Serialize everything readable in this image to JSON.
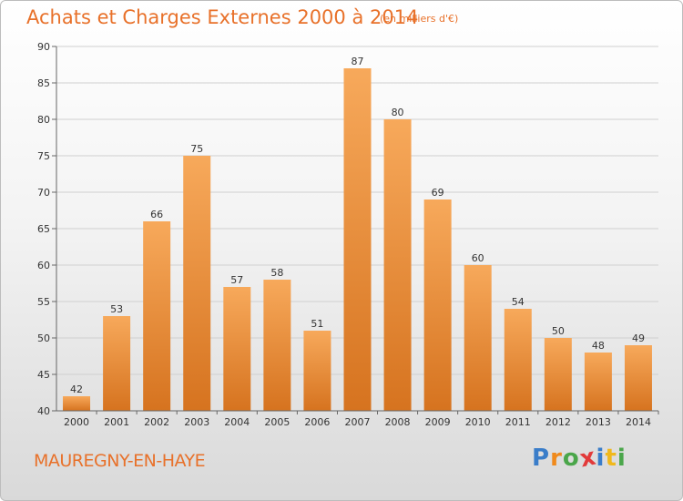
{
  "title": "Achats et Charges Externes 2000 à 2014",
  "unit_note": "(en milliers d'€)",
  "place_name": "MAUREGNY-EN-HAYE",
  "brand": {
    "text": "Proxiti",
    "letter_colors": [
      "#3a7dc9",
      "#f08a1c",
      "#4aa64a",
      "#e23a3a",
      "#3a7dc9",
      "#f0b81c",
      "#4aa64a"
    ]
  },
  "colors": {
    "accent": "#e8712a",
    "bar_top": "#f7a95b",
    "bar_bottom": "#d6731f",
    "grid": "#d0d0d0",
    "axis": "#666666"
  },
  "chart_data": {
    "type": "bar",
    "categories": [
      "2000",
      "2001",
      "2002",
      "2003",
      "2004",
      "2005",
      "2006",
      "2007",
      "2008",
      "2009",
      "2010",
      "2011",
      "2012",
      "2013",
      "2014"
    ],
    "values": [
      42,
      53,
      66,
      75,
      57,
      58,
      51,
      87,
      80,
      69,
      60,
      54,
      50,
      48,
      49
    ],
    "ylim": [
      40,
      90
    ],
    "yticks": [
      40,
      45,
      50,
      55,
      60,
      65,
      70,
      75,
      80,
      85,
      90
    ],
    "grid": true,
    "data_labels": true
  }
}
